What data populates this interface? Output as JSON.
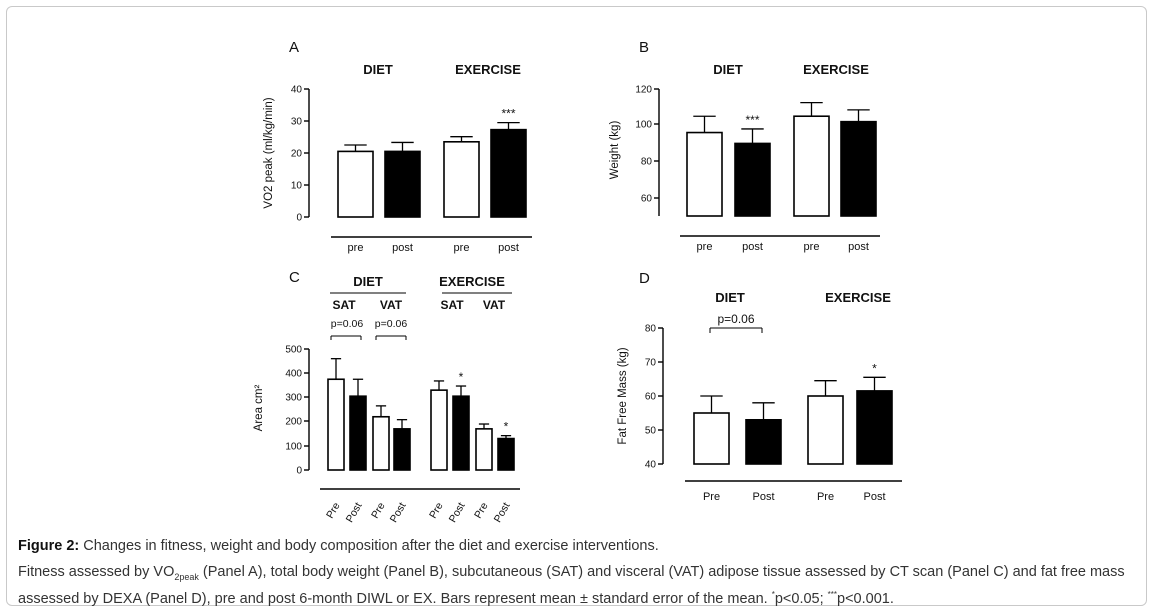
{
  "figure": {
    "caption_label": "Figure 2:",
    "caption_title": "Changes in fitness, weight and body composition after the diet and exercise interventions.",
    "desc_part1": "Fitness assessed by VO",
    "desc_sub": "2peak",
    "desc_part2": " (Panel A), total body weight (Panel B), subcutaneous (SAT) and visceral (VAT) adipose tissue assessed by CT scan (Panel C) and fat free mass assessed by DEXA (Panel D), pre and post 6-month DIWL or EX. Bars represent mean ± standard error of the mean. ",
    "desc_sup1": "*",
    "desc_part3": "p<0.05; ",
    "desc_sup2": "***",
    "desc_part4": "p<0.001."
  },
  "colors": {
    "filled": "#000000",
    "open": "#ffffff",
    "axis": "#000000",
    "frame": "#c9c9c9"
  },
  "chart_data": [
    {
      "panel": "A",
      "type": "bar",
      "groups": [
        "DIET",
        "EXERCISE"
      ],
      "categories": [
        "pre",
        "post",
        "pre",
        "post"
      ],
      "fills": [
        "open",
        "filled",
        "open",
        "filled"
      ],
      "values": [
        20.5,
        20.5,
        23.5,
        27.3
      ],
      "errors": [
        2.0,
        2.8,
        1.6,
        2.2
      ],
      "sig": [
        "",
        "",
        "",
        "***"
      ],
      "ylabel": "VO2 peak (ml/kg/min)",
      "ylim": [
        0,
        40
      ],
      "yticks": [
        "0",
        "10",
        "20",
        "30",
        "40"
      ]
    },
    {
      "panel": "B",
      "type": "bar",
      "groups": [
        "DIET",
        "EXERCISE"
      ],
      "categories": [
        "pre",
        "post",
        "pre",
        "post"
      ],
      "fills": [
        "open",
        "filled",
        "open",
        "filled"
      ],
      "values": [
        96,
        90,
        105,
        102
      ],
      "errors": [
        9,
        8,
        7.5,
        6.5
      ],
      "sig": [
        "",
        "***",
        "",
        ""
      ],
      "ylabel": "Weight (kg)",
      "ylim": [
        50,
        120
      ],
      "yticks": [
        "60",
        "80",
        "100",
        "120"
      ]
    },
    {
      "panel": "C",
      "type": "bar",
      "groups": [
        "DIET",
        "EXERCISE"
      ],
      "subgroups": [
        "SAT",
        "VAT",
        "SAT",
        "VAT"
      ],
      "pvalues": [
        "p=0.06",
        "p=0.06"
      ],
      "categories": [
        "Pre",
        "Post",
        "Pre",
        "Post",
        "Pre",
        "Post",
        "Pre",
        "Post"
      ],
      "fills": [
        "open",
        "filled",
        "open",
        "filled",
        "open",
        "filled",
        "open",
        "filled"
      ],
      "values": [
        375,
        305,
        220,
        170,
        330,
        305,
        170,
        130
      ],
      "errors": [
        85,
        70,
        45,
        38,
        38,
        42,
        20,
        12
      ],
      "sig": [
        "",
        "",
        "",
        "",
        "",
        "*",
        "",
        "*"
      ],
      "ylabel": "Area cm²",
      "ylim": [
        0,
        500
      ],
      "yticks": [
        "0",
        "100",
        "200",
        "300",
        "400",
        "500"
      ]
    },
    {
      "panel": "D",
      "type": "bar",
      "groups": [
        "DIET",
        "EXERCISE"
      ],
      "pvalue": "p=0.06",
      "categories": [
        "Pre",
        "Post",
        "Pre",
        "Post"
      ],
      "fills": [
        "open",
        "filled",
        "open",
        "filled"
      ],
      "values": [
        55,
        53,
        60,
        61.5
      ],
      "errors": [
        5,
        5,
        4.5,
        4
      ],
      "sig": [
        "",
        "",
        "",
        "*"
      ],
      "ylabel": "Fat Free Mass (kg)",
      "ylim": [
        40,
        80
      ],
      "yticks": [
        "40",
        "50",
        "60",
        "70",
        "80"
      ]
    }
  ]
}
